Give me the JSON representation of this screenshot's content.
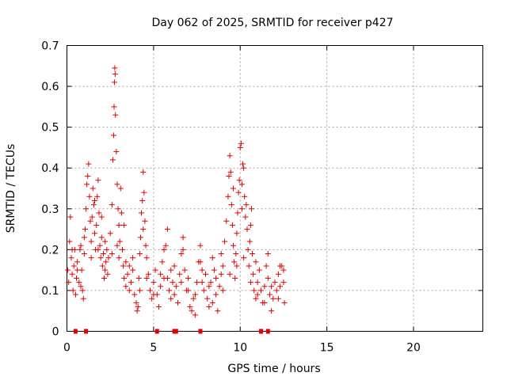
{
  "chart_data": {
    "type": "scatter",
    "title": "Day 062 of 2025, SRMTID for receiver p427",
    "xlabel": "GPS time / hours",
    "ylabel": "SRMTID / TECUs",
    "xlim": [
      0,
      24
    ],
    "ylim": [
      0,
      0.7
    ],
    "xticks": [
      "0",
      "5",
      "10",
      "15",
      "20"
    ],
    "xtick_values": [
      0,
      5,
      10,
      15,
      20
    ],
    "yticks": [
      "0",
      "0.1",
      "0.2",
      "0.3",
      "0.4",
      "0.5",
      "0.6",
      "0.7"
    ],
    "ytick_values": [
      0,
      0.1,
      0.2,
      0.3,
      0.4,
      0.5,
      0.6,
      0.7
    ],
    "grid": true,
    "marker": "+",
    "color": "#e00000",
    "series": [
      {
        "name": "SRMTID",
        "points": [
          [
            0.05,
            0.15
          ],
          [
            0.1,
            0.12
          ],
          [
            0.15,
            0.22
          ],
          [
            0.2,
            0.28
          ],
          [
            0.25,
            0.18
          ],
          [
            0.3,
            0.14
          ],
          [
            0.35,
            0.1
          ],
          [
            0.4,
            0.16
          ],
          [
            0.45,
            0.2
          ],
          [
            0.5,
            0.09
          ],
          [
            0.55,
            0.13
          ],
          [
            0.6,
            0.17
          ],
          [
            0.7,
            0.12
          ],
          [
            0.75,
            0.2
          ],
          [
            0.8,
            0.21
          ],
          [
            0.85,
            0.15
          ],
          [
            0.9,
            0.1
          ],
          [
            0.95,
            0.08
          ],
          [
            1.0,
            0.19
          ],
          [
            1.05,
            0.25
          ],
          [
            1.1,
            0.3
          ],
          [
            1.15,
            0.36
          ],
          [
            1.2,
            0.38
          ],
          [
            1.25,
            0.41
          ],
          [
            1.3,
            0.33
          ],
          [
            1.35,
            0.27
          ],
          [
            1.4,
            0.22
          ],
          [
            1.45,
            0.28
          ],
          [
            1.5,
            0.35
          ],
          [
            1.55,
            0.31
          ],
          [
            1.6,
            0.24
          ],
          [
            1.65,
            0.2
          ],
          [
            1.7,
            0.26
          ],
          [
            1.75,
            0.33
          ],
          [
            1.8,
            0.37
          ],
          [
            1.85,
            0.29
          ],
          [
            1.9,
            0.21
          ],
          [
            1.95,
            0.18
          ],
          [
            2.0,
            0.23
          ],
          [
            2.05,
            0.16
          ],
          [
            2.1,
            0.19
          ],
          [
            2.15,
            0.13
          ],
          [
            2.2,
            0.22
          ],
          [
            2.25,
            0.17
          ],
          [
            2.3,
            0.2
          ],
          [
            2.35,
            0.14
          ],
          [
            2.4,
            0.18
          ],
          [
            2.5,
            0.24
          ],
          [
            2.6,
            0.31
          ],
          [
            2.65,
            0.42
          ],
          [
            2.7,
            0.48
          ],
          [
            2.72,
            0.55
          ],
          [
            2.74,
            0.61
          ],
          [
            2.76,
            0.645
          ],
          [
            2.78,
            0.63
          ],
          [
            2.8,
            0.53
          ],
          [
            2.85,
            0.44
          ],
          [
            2.9,
            0.36
          ],
          [
            2.95,
            0.3
          ],
          [
            3.0,
            0.26
          ],
          [
            3.05,
            0.22
          ],
          [
            3.1,
            0.35
          ],
          [
            3.15,
            0.29
          ],
          [
            3.2,
            0.2
          ],
          [
            3.25,
            0.16
          ],
          [
            3.3,
            0.13
          ],
          [
            3.4,
            0.17
          ],
          [
            3.5,
            0.14
          ],
          [
            3.6,
            0.1
          ],
          [
            3.7,
            0.12
          ],
          [
            3.8,
            0.15
          ],
          [
            3.9,
            0.09
          ],
          [
            4.0,
            0.07
          ],
          [
            4.05,
            0.05
          ],
          [
            4.1,
            0.06
          ],
          [
            4.15,
            0.13
          ],
          [
            4.2,
            0.19
          ],
          [
            4.25,
            0.23
          ],
          [
            4.3,
            0.29
          ],
          [
            4.35,
            0.32
          ],
          [
            4.4,
            0.39
          ],
          [
            4.45,
            0.34
          ],
          [
            4.5,
            0.27
          ],
          [
            4.55,
            0.21
          ],
          [
            4.6,
            0.18
          ],
          [
            4.7,
            0.14
          ],
          [
            4.8,
            0.1
          ],
          [
            4.9,
            0.08
          ],
          [
            5.0,
            0.12
          ],
          [
            5.1,
            0.15
          ],
          [
            5.2,
            0.09
          ],
          [
            5.3,
            0.06
          ],
          [
            5.4,
            0.11
          ],
          [
            5.5,
            0.17
          ],
          [
            5.6,
            0.13
          ],
          [
            5.7,
            0.21
          ],
          [
            5.8,
            0.25
          ],
          [
            5.9,
            0.1
          ],
          [
            6.0,
            0.08
          ],
          [
            6.1,
            0.12
          ],
          [
            6.2,
            0.16
          ],
          [
            6.3,
            0.11
          ],
          [
            6.4,
            0.07
          ],
          [
            6.5,
            0.14
          ],
          [
            6.6,
            0.19
          ],
          [
            6.7,
            0.23
          ],
          [
            6.8,
            0.15
          ],
          [
            6.9,
            0.1
          ],
          [
            7.0,
            0.13
          ],
          [
            7.1,
            0.06
          ],
          [
            7.2,
            0.05
          ],
          [
            7.3,
            0.08
          ],
          [
            7.4,
            0.04
          ],
          [
            7.5,
            0.12
          ],
          [
            7.6,
            0.17
          ],
          [
            7.7,
            0.21
          ],
          [
            7.8,
            0.15
          ],
          [
            7.9,
            0.1
          ],
          [
            8.0,
            0.14
          ],
          [
            8.1,
            0.08
          ],
          [
            8.2,
            0.06
          ],
          [
            8.3,
            0.12
          ],
          [
            8.4,
            0.18
          ],
          [
            8.5,
            0.15
          ],
          [
            8.6,
            0.09
          ],
          [
            8.7,
            0.05
          ],
          [
            8.8,
            0.11
          ],
          [
            8.9,
            0.19
          ],
          [
            9.0,
            0.16
          ],
          [
            9.1,
            0.22
          ],
          [
            9.2,
            0.27
          ],
          [
            9.3,
            0.33
          ],
          [
            9.35,
            0.38
          ],
          [
            9.4,
            0.43
          ],
          [
            9.45,
            0.39
          ],
          [
            9.5,
            0.31
          ],
          [
            9.55,
            0.26
          ],
          [
            9.6,
            0.21
          ],
          [
            9.65,
            0.17
          ],
          [
            9.7,
            0.13
          ],
          [
            9.75,
            0.19
          ],
          [
            9.8,
            0.24
          ],
          [
            9.85,
            0.29
          ],
          [
            9.9,
            0.34
          ],
          [
            9.95,
            0.37
          ],
          [
            10.0,
            0.45
          ],
          [
            10.05,
            0.46
          ],
          [
            10.1,
            0.36
          ],
          [
            10.15,
            0.41
          ],
          [
            10.2,
            0.4
          ],
          [
            10.25,
            0.33
          ],
          [
            10.3,
            0.28
          ],
          [
            10.35,
            0.31
          ],
          [
            10.4,
            0.25
          ],
          [
            10.45,
            0.2
          ],
          [
            10.5,
            0.16
          ],
          [
            10.55,
            0.22
          ],
          [
            10.6,
            0.26
          ],
          [
            10.65,
            0.3
          ],
          [
            10.7,
            0.19
          ],
          [
            10.75,
            0.14
          ],
          [
            10.8,
            0.1
          ],
          [
            10.9,
            0.08
          ],
          [
            11.0,
            0.12
          ],
          [
            11.1,
            0.15
          ],
          [
            11.2,
            0.1
          ],
          [
            11.3,
            0.07
          ],
          [
            11.4,
            0.11
          ],
          [
            11.5,
            0.16
          ],
          [
            11.6,
            0.13
          ],
          [
            11.7,
            0.09
          ],
          [
            11.8,
            0.05
          ],
          [
            11.9,
            0.08
          ],
          [
            12.0,
            0.12
          ],
          [
            12.1,
            0.1
          ],
          [
            12.2,
            0.14
          ],
          [
            12.3,
            0.11
          ],
          [
            12.4,
            0.16
          ],
          [
            12.5,
            0.12
          ],
          [
            12.55,
            0.07
          ],
          [
            0.3,
            0.2
          ],
          [
            0.6,
            0.15
          ],
          [
            1.0,
            0.23
          ],
          [
            1.4,
            0.18
          ],
          [
            1.8,
            0.2
          ],
          [
            2.2,
            0.15
          ],
          [
            2.6,
            0.19
          ],
          [
            3.0,
            0.18
          ],
          [
            3.4,
            0.11
          ],
          [
            3.8,
            0.18
          ],
          [
            4.2,
            0.1
          ],
          [
            4.6,
            0.13
          ],
          [
            5.0,
            0.09
          ],
          [
            5.4,
            0.14
          ],
          [
            5.8,
            0.13
          ],
          [
            6.2,
            0.09
          ],
          [
            6.6,
            0.12
          ],
          [
            7.0,
            0.1
          ],
          [
            7.4,
            0.09
          ],
          [
            7.8,
            0.12
          ],
          [
            8.2,
            0.11
          ],
          [
            8.6,
            0.13
          ],
          [
            9.0,
            0.1
          ],
          [
            9.4,
            0.14
          ],
          [
            9.8,
            0.16
          ],
          [
            10.2,
            0.18
          ],
          [
            10.6,
            0.12
          ],
          [
            11.0,
            0.09
          ],
          [
            11.4,
            0.07
          ],
          [
            11.8,
            0.11
          ],
          [
            12.2,
            0.08
          ],
          [
            12.5,
            0.15
          ],
          [
            1.6,
            0.32
          ],
          [
            2.0,
            0.28
          ],
          [
            2.9,
            0.21
          ],
          [
            3.3,
            0.26
          ],
          [
            4.4,
            0.25
          ],
          [
            5.6,
            0.2
          ],
          [
            6.7,
            0.2
          ],
          [
            7.7,
            0.17
          ],
          [
            8.9,
            0.14
          ],
          [
            9.6,
            0.35
          ],
          [
            10.1,
            0.3
          ],
          [
            10.9,
            0.17
          ],
          [
            11.6,
            0.19
          ],
          [
            12.3,
            0.16
          ],
          [
            0.8,
            0.11
          ],
          [
            3.6,
            0.16
          ],
          [
            6.0,
            0.15
          ],
          [
            8.4,
            0.07
          ]
        ]
      }
    ],
    "zero_markers_x": [
      0.5,
      1.1,
      5.2,
      6.2,
      6.3,
      7.7,
      11.2,
      11.6
    ]
  }
}
